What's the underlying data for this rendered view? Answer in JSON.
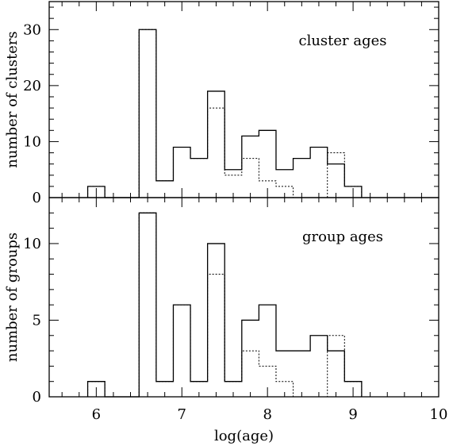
{
  "chart_data": {
    "type": "histogram",
    "xlabel": "log(age)",
    "xlim": [
      5.45,
      10.0
    ],
    "xticks_major": [
      6,
      7,
      8,
      9,
      10
    ],
    "xticks_minor_step": 0.2,
    "bin_width": 0.2,
    "bin_edges": [
      5.9,
      6.1,
      6.3,
      6.5,
      6.7,
      6.9,
      7.1,
      7.3,
      7.5,
      7.7,
      7.9,
      8.1,
      8.3,
      8.5,
      8.7,
      8.9,
      9.1
    ],
    "panels": [
      {
        "ylabel": "number of clusters",
        "annotation": "cluster ages",
        "ylim": [
          0,
          35
        ],
        "yticks_major": [
          0,
          10,
          20,
          30
        ],
        "yticks_minor_step": 2,
        "series": [
          {
            "style": "solid",
            "values": [
              2,
              0,
              0,
              30,
              3,
              9,
              7,
              19,
              5,
              11,
              12,
              5,
              7,
              9,
              6,
              2
            ]
          },
          {
            "style": "dotted",
            "values": [
              2,
              0,
              0,
              30,
              3,
              9,
              7,
              16,
              4,
              7,
              3,
              2,
              0,
              0,
              8,
              2
            ]
          }
        ]
      },
      {
        "ylabel": "number of groups",
        "annotation": "group ages",
        "ylim": [
          0,
          13
        ],
        "yticks_major": [
          0,
          5,
          10
        ],
        "yticks_minor_step": 1,
        "series": [
          {
            "style": "solid",
            "values": [
              1,
              0,
              0,
              12,
              1,
              6,
              1,
              10,
              1,
              5,
              6,
              3,
              3,
              4,
              3,
              1
            ]
          },
          {
            "style": "dotted",
            "values": [
              1,
              0,
              0,
              12,
              1,
              6,
              1,
              8,
              1,
              3,
              2,
              1,
              0,
              0,
              4,
              1
            ]
          }
        ]
      }
    ]
  }
}
